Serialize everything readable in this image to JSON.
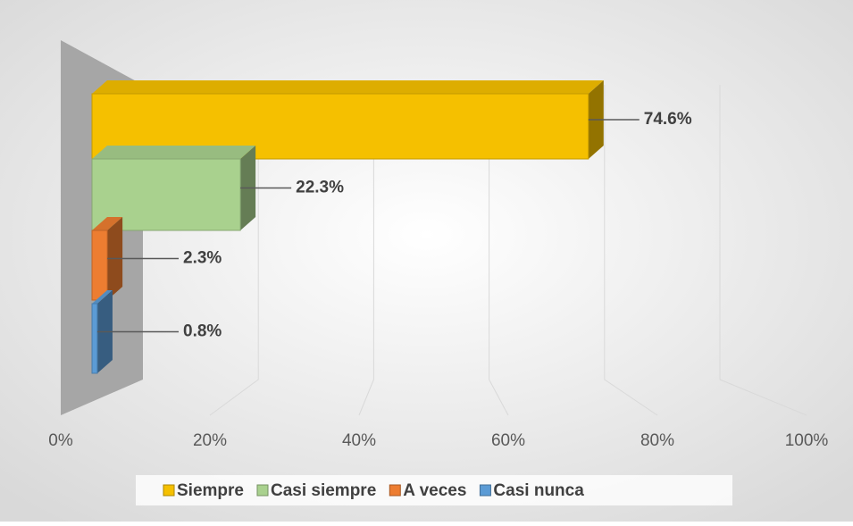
{
  "chart_data": {
    "type": "bar3d",
    "series": [
      {
        "name": "Siempre",
        "color": "#f5c000",
        "values": [
          74.6
        ],
        "value_labels": [
          "74.6%"
        ]
      },
      {
        "name": "Casi siempre",
        "color": "#a9d18e",
        "values": [
          22.3
        ],
        "value_labels": [
          "22.3%"
        ]
      },
      {
        "name": "A veces",
        "color": "#ed7d31",
        "values": [
          2.3
        ],
        "value_labels": [
          "2.3%"
        ]
      },
      {
        "name": "Casi nunca",
        "color": "#5b9bd5",
        "values": [
          0.8
        ],
        "value_labels": [
          "0.8%"
        ]
      }
    ],
    "xlim": [
      0,
      100
    ],
    "xticks": [
      {
        "value": 0,
        "label": "0%"
      },
      {
        "value": 20,
        "label": "20%"
      },
      {
        "value": 40,
        "label": "40%"
      },
      {
        "value": 60,
        "label": "60%"
      },
      {
        "value": 80,
        "label": "80%"
      },
      {
        "value": 100,
        "label": "100%"
      }
    ],
    "grid": true,
    "legend": "bottom"
  }
}
